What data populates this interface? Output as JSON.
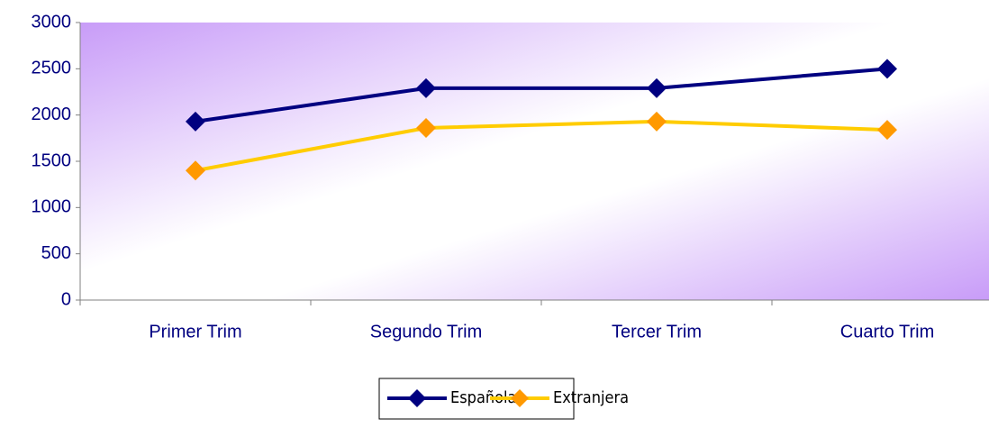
{
  "chart_data": {
    "type": "line",
    "categories": [
      "Primer Trim",
      "Segundo Trim",
      "Tercer Trim",
      "Cuarto Trim"
    ],
    "series": [
      {
        "name": "Española",
        "color": "#000080",
        "marker_color": "#000080",
        "values": [
          1930,
          2290,
          2290,
          2500
        ]
      },
      {
        "name": "Extranjera",
        "color": "#ffcc00",
        "marker_color": "#ff9900",
        "values": [
          1400,
          1860,
          1930,
          1840
        ]
      }
    ],
    "ylim": [
      0,
      3000
    ],
    "yticks": [
      0,
      500,
      1000,
      1500,
      2000,
      2500,
      3000
    ],
    "legend": "bottom",
    "grid": false
  }
}
